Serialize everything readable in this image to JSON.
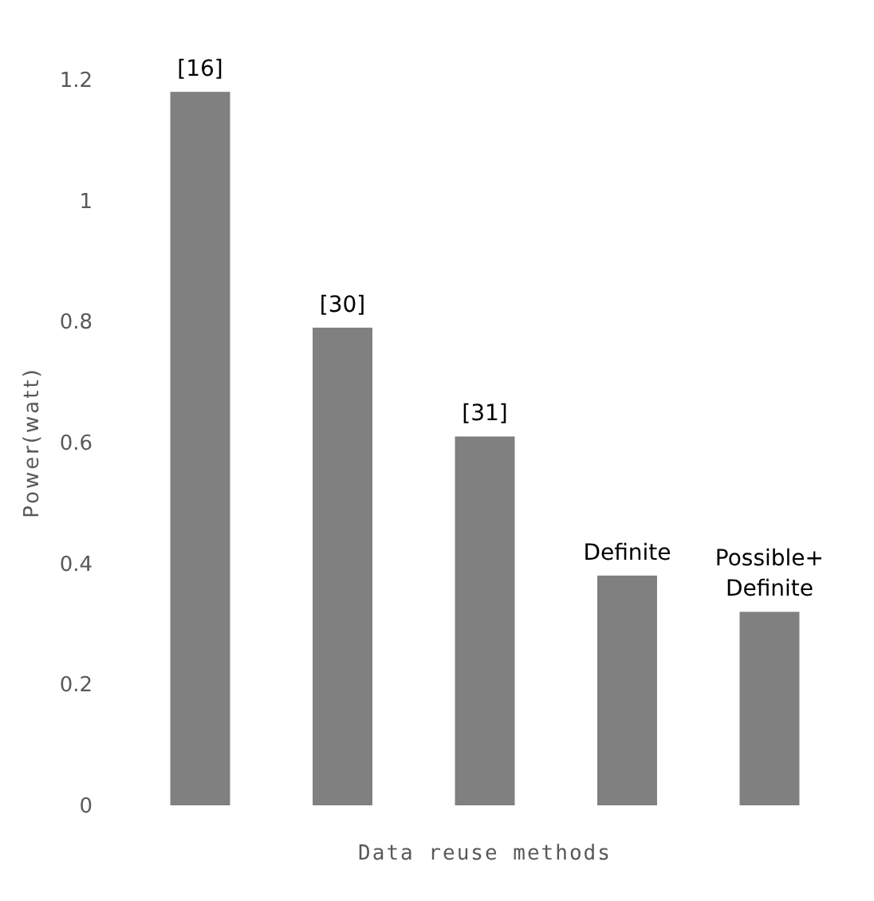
{
  "chart_data": {
    "type": "bar",
    "xlabel": "Data reuse methods",
    "ylabel": "Power(watt)",
    "categories": [
      "[16]",
      "[30]",
      "[31]",
      "Definite",
      "Possible+ Definite"
    ],
    "values": [
      1.18,
      0.79,
      0.61,
      0.38,
      0.32
    ],
    "color": "#808080",
    "ylim": [
      0,
      1.2
    ],
    "yticks": [
      0,
      0.2,
      0.4,
      0.6,
      0.8,
      1,
      1.2
    ],
    "grid": false
  }
}
